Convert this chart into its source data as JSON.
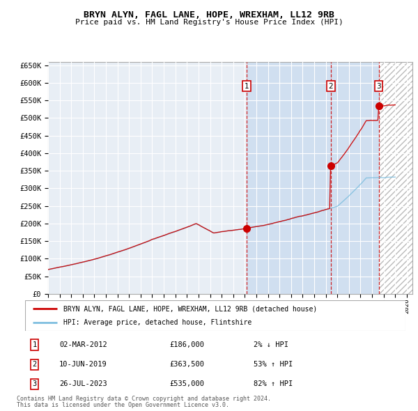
{
  "title": "BRYN ALYN, FAGL LANE, HOPE, WREXHAM, LL12 9RB",
  "subtitle": "Price paid vs. HM Land Registry's House Price Index (HPI)",
  "legend_line1": "BRYN ALYN, FAGL LANE, HOPE, WREXHAM, LL12 9RB (detached house)",
  "legend_line2": "HPI: Average price, detached house, Flintshire",
  "transactions": [
    {
      "num": 1,
      "date": "02-MAR-2012",
      "date_dec": 2012.17,
      "price": 186000,
      "pct": "2%",
      "dir": "↓"
    },
    {
      "num": 2,
      "date": "10-JUN-2019",
      "date_dec": 2019.44,
      "price": 363500,
      "pct": "53%",
      "dir": "↑"
    },
    {
      "num": 3,
      "date": "26-JUL-2023",
      "date_dec": 2023.57,
      "price": 535000,
      "pct": "82%",
      "dir": "↑"
    }
  ],
  "footer1": "Contains HM Land Registry data © Crown copyright and database right 2024.",
  "footer2": "This data is licensed under the Open Government Licence v3.0.",
  "hpi_color": "#7fbfdf",
  "price_color": "#cc0000",
  "chart_bg": "#e8eef5",
  "shade_bg": "#d0dff0",
  "ylim": [
    0,
    660000
  ],
  "xlim_start": 1995.0,
  "xlim_end": 2026.5
}
